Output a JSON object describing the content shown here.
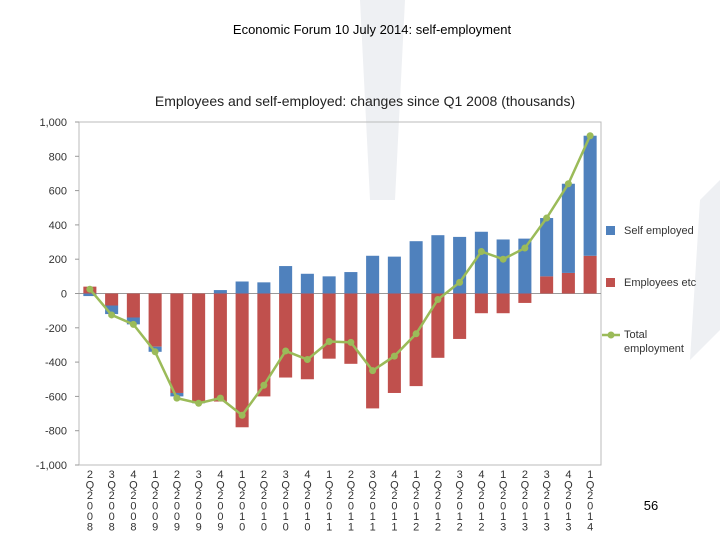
{
  "slide_title": "Economic Forum 10 July 2014: self-employment",
  "page_number": "56",
  "chart_data": {
    "type": "stacked_bar_line",
    "title": "Employees and self-employed: changes since Q1 2008  (thousands)",
    "categories": [
      "2Q2008",
      "3Q2008",
      "4Q2008",
      "1Q2009",
      "2Q2009",
      "3Q2009",
      "4Q2009",
      "1Q2010",
      "2Q2010",
      "3Q2010",
      "4Q2010",
      "1Q2011",
      "2Q2011",
      "3Q2011",
      "4Q2011",
      "1Q2012",
      "2Q2012",
      "3Q2012",
      "4Q2012",
      "1Q2013",
      "2Q2013",
      "3Q2013",
      "4Q2013",
      "1Q2014"
    ],
    "series": [
      {
        "name": "Self employed",
        "color": "#4f81bd",
        "kind": "bar",
        "values": [
          -15,
          -50,
          -40,
          -30,
          -20,
          -10,
          20,
          70,
          65,
          160,
          115,
          100,
          125,
          220,
          215,
          305,
          340,
          330,
          360,
          315,
          320,
          340,
          520,
          700
        ]
      },
      {
        "name": "Employees etc",
        "color": "#c0504d",
        "kind": "bar",
        "values": [
          40,
          -70,
          -140,
          -310,
          -580,
          -630,
          -630,
          -780,
          -600,
          -490,
          -500,
          -380,
          -410,
          -670,
          -580,
          -540,
          -375,
          -265,
          -115,
          -115,
          -55,
          100,
          120,
          220
        ]
      },
      {
        "name": "Total employment",
        "color": "#9bbb59",
        "kind": "line",
        "values": [
          25,
          -125,
          -180,
          -340,
          -610,
          -640,
          -610,
          -710,
          -535,
          -335,
          -385,
          -280,
          -285,
          -450,
          -365,
          -235,
          -35,
          65,
          245,
          200,
          265,
          440,
          640,
          920
        ]
      }
    ],
    "ylim": [
      -1000,
      1000
    ],
    "yticks": [
      {
        "value": -1000,
        "label": "-1,000"
      },
      -800,
      -600,
      -400,
      -200,
      0,
      200,
      400,
      600,
      800,
      {
        "value": 1000,
        "label": "1,000"
      }
    ],
    "legend": "right"
  }
}
